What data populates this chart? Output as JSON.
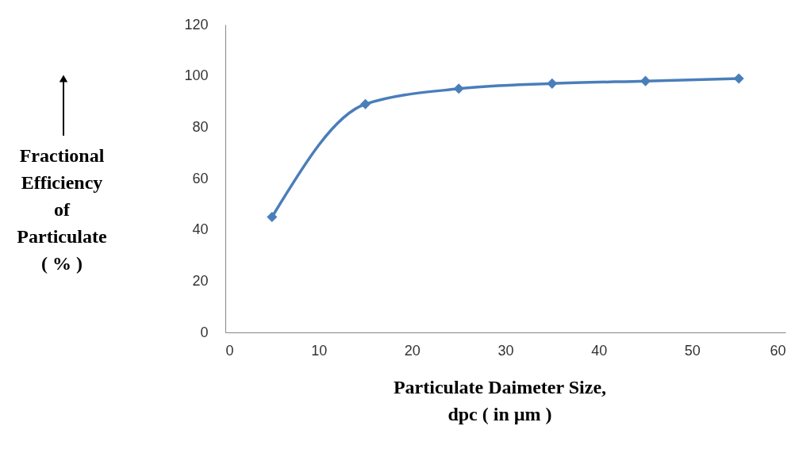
{
  "chart_data": {
    "type": "line",
    "xlabel": "Particulate Daimeter Size,\ndpc ( in µm )",
    "ylabel": "Fractional\nEfficiency\nof\nParticulate\n( % )",
    "x": [
      5,
      15,
      25,
      35,
      45,
      55
    ],
    "series": [
      {
        "color": "#4a7ebb",
        "values": [
          45,
          89,
          95,
          97,
          98,
          99
        ]
      }
    ],
    "xlim": [
      0,
      60
    ],
    "xticks": [
      0,
      10,
      20,
      30,
      40,
      50,
      60
    ],
    "ylim": [
      0,
      120
    ],
    "yticks": [
      0,
      20,
      40,
      60,
      80,
      100,
      120
    ],
    "grid": false,
    "marker": "diamond",
    "line_style": "solid"
  }
}
